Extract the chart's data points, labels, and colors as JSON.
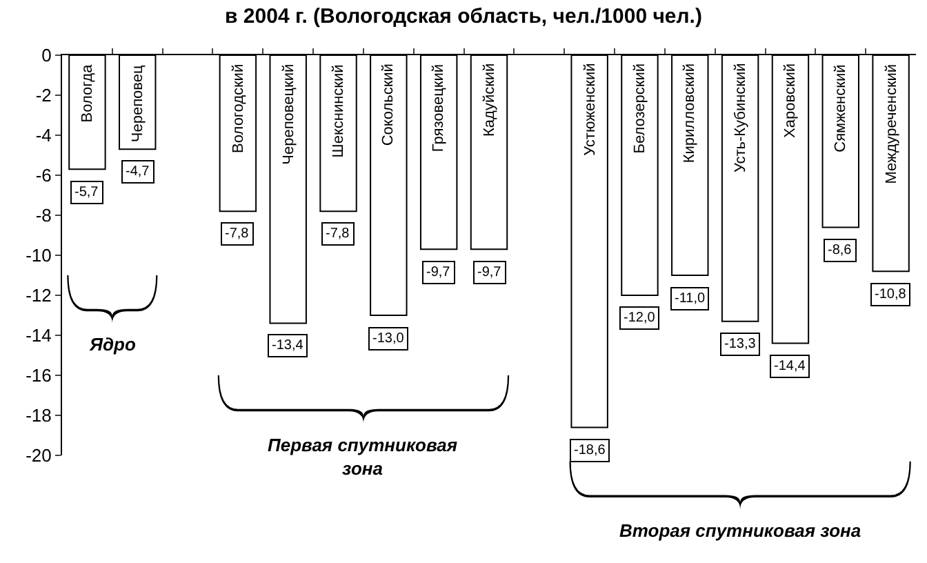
{
  "chart_data": {
    "type": "bar",
    "title": "в 2004 г. (Вологодская область, чел./1000 чел.)",
    "categories": [
      "Вологда",
      "Череповец",
      null,
      "Вологодский",
      "Череповецкий",
      "Шекснинский",
      "Сокольский",
      "Грязовецкий",
      "Кадуйский",
      null,
      "Устюженский",
      "Белозерский",
      "Кирилловский",
      "Усть-Кубинский",
      "Харовский",
      "Сямженский",
      "Междуреченский"
    ],
    "values": [
      -5.7,
      -4.7,
      null,
      -7.8,
      -13.4,
      -7.8,
      -13.0,
      -9.7,
      -9.7,
      null,
      -18.6,
      -12.0,
      -11.0,
      -13.3,
      -14.4,
      -8.6,
      -10.8
    ],
    "color": "#ffffff",
    "ylim": [
      -20,
      0
    ],
    "yticks": [
      0,
      -2,
      -4,
      -6,
      -8,
      -10,
      -12,
      -14,
      -16,
      -18,
      -20
    ],
    "value_labels": [
      "-5,7",
      "-4,7",
      null,
      "-7,8",
      "-13,4",
      "-7,8",
      "-13,0",
      "-9,7",
      "-9,7",
      null,
      "-18,6",
      "-12,0",
      "-11,0",
      "-13,3",
      "-14,4",
      "-8,6",
      "-10,8"
    ],
    "annotations": [
      "Ядро",
      "Первая спутниковая\nзона",
      "Вторая спутниковая зона"
    ]
  }
}
